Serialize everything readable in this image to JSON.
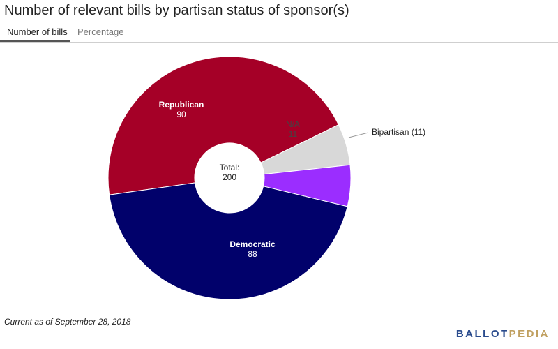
{
  "title": "Number of relevant bills by partisan status of sponsor(s)",
  "tabs": [
    {
      "label": "Number of bills",
      "active": true
    },
    {
      "label": "Percentage",
      "active": false
    }
  ],
  "chart_data": {
    "type": "pie",
    "total_label": "Total:",
    "total_value": "200",
    "slices": [
      {
        "name": "Republican",
        "value": 90,
        "color": "#a50027"
      },
      {
        "name": "N/A",
        "value": 11,
        "color": "#d8d8d8"
      },
      {
        "name": "Bipartisan",
        "value": 11,
        "color": "#9b2dff"
      },
      {
        "name": "Democratic",
        "value": 88,
        "color": "#01016b"
      }
    ],
    "bipartisan_label": "Bipartisan (11)"
  },
  "footnote": "Current as of September 28, 2018",
  "logo": {
    "part1": "BALLOT",
    "part2": "PEDIA"
  }
}
